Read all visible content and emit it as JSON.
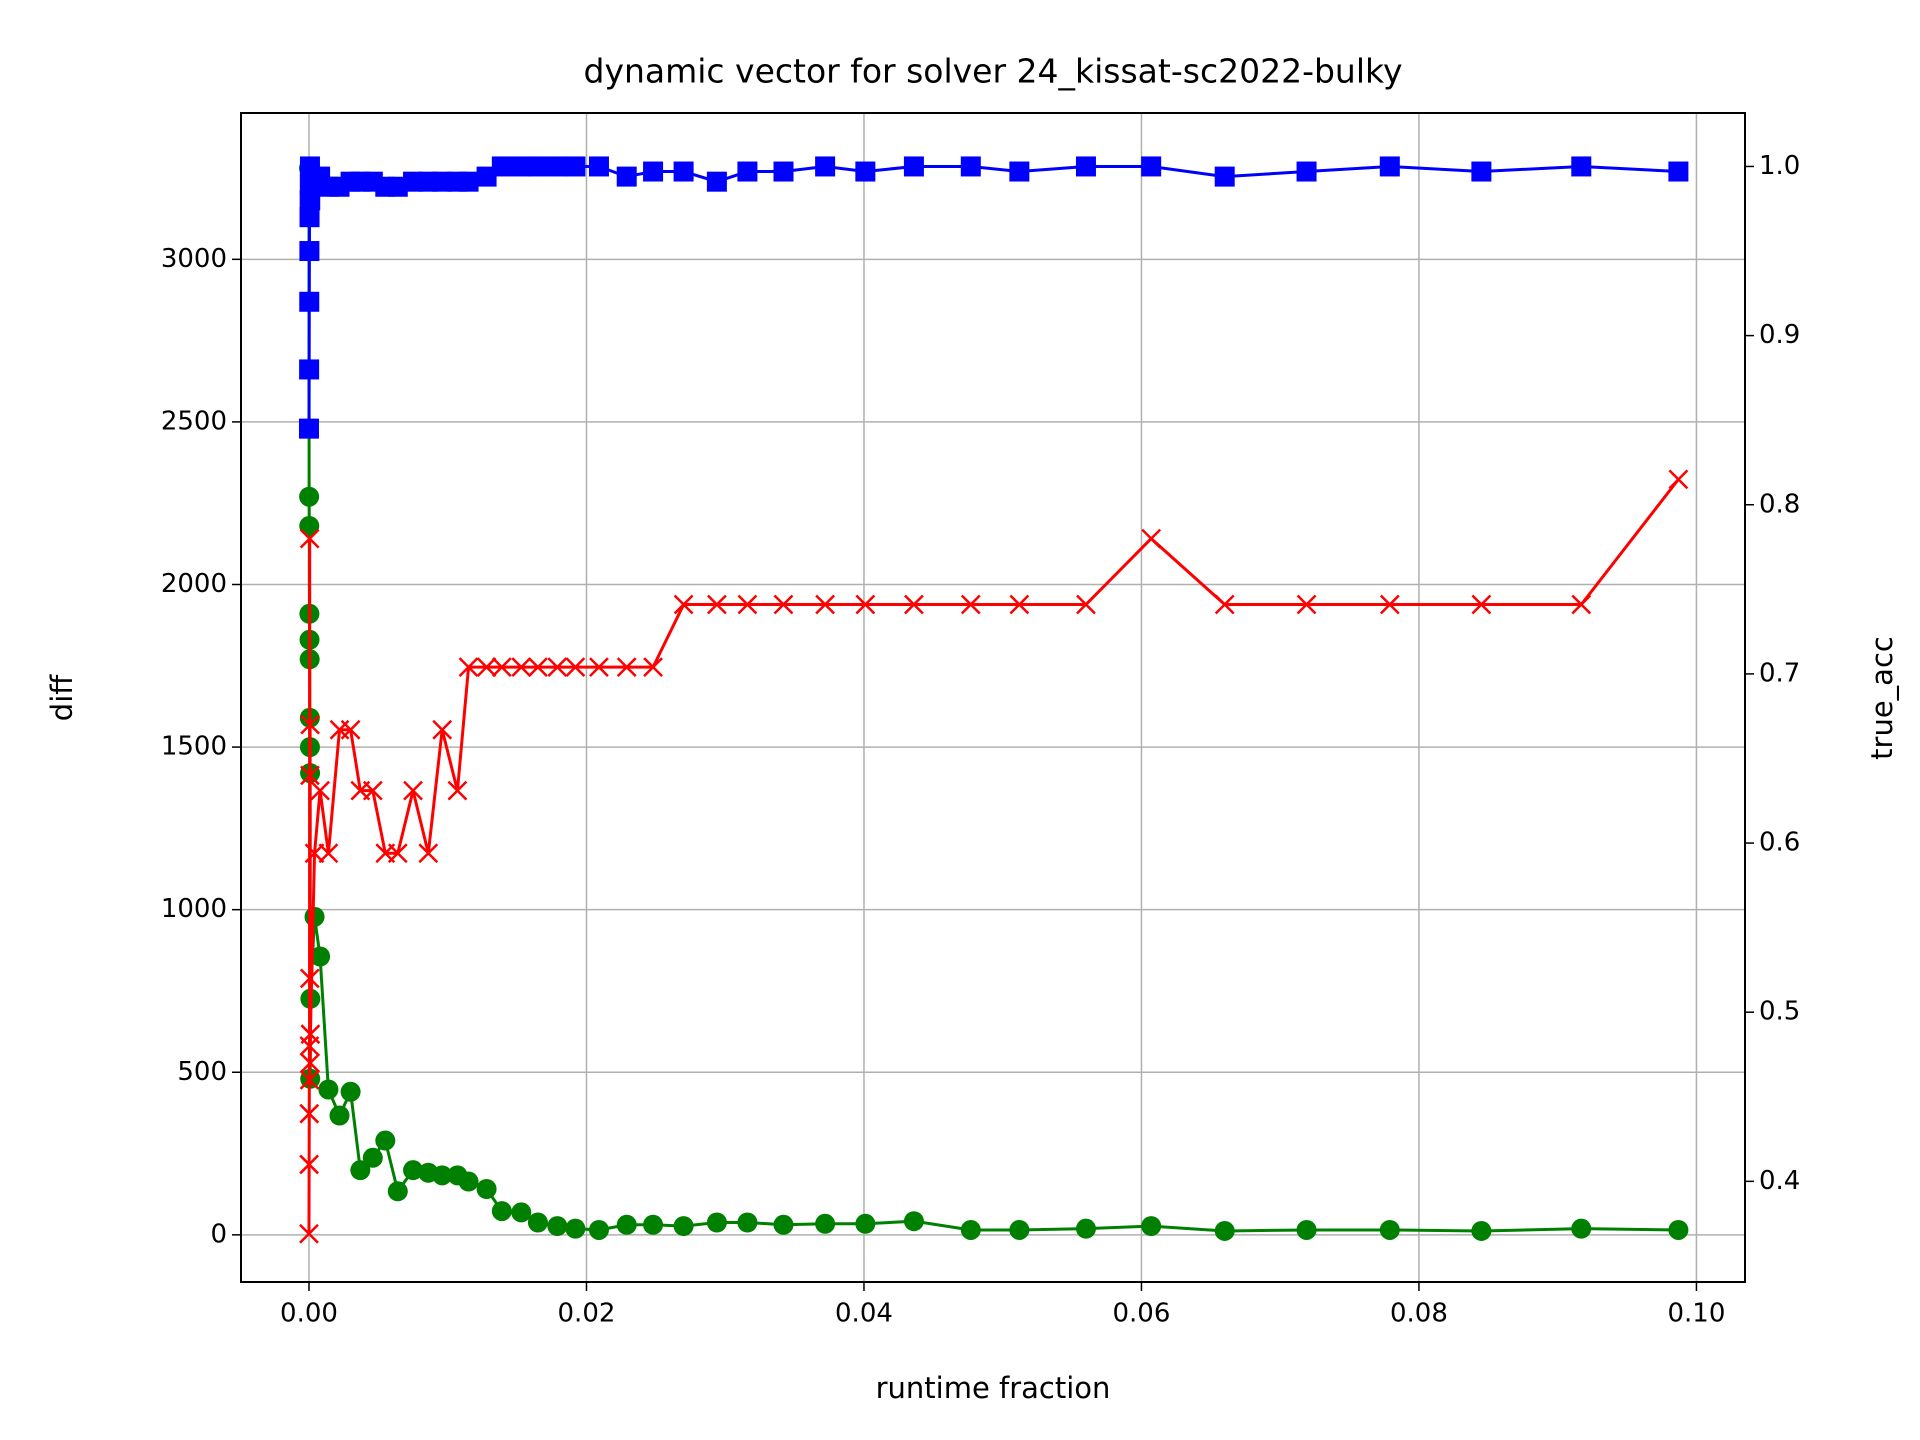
{
  "chart_data": {
    "type": "line",
    "title": "dynamic vector for solver 24_kissat-sc2022-bulky",
    "xlabel": "runtime fraction",
    "ylabel": "diff",
    "y2label": "true_acc",
    "ylabel_color": "green",
    "y2label_color": "red",
    "grid": true,
    "x": [
      0,
      1e-05,
      2e-05,
      3e-05,
      4e-05,
      5e-05,
      6e-05,
      7e-05,
      8e-05,
      9e-05,
      0.0001,
      0.0004,
      0.0008,
      0.0014,
      0.0022,
      0.003,
      0.0037,
      0.0046,
      0.0055,
      0.0064,
      0.0075,
      0.0086,
      0.0096,
      0.0107,
      0.0115,
      0.0128,
      0.0139,
      0.0153,
      0.0165,
      0.0179,
      0.0192,
      0.0209,
      0.0229,
      0.0248,
      0.027,
      0.0294,
      0.0316,
      0.0342,
      0.0372,
      0.0401,
      0.0436,
      0.0477,
      0.0512,
      0.056,
      0.0607,
      0.066,
      0.0719,
      0.0779,
      0.0845,
      0.0917,
      0.0987
    ],
    "series": [
      {
        "color": "green",
        "marker": "circle",
        "values": [
          3280,
          2270,
          2180,
          1910,
          1830,
          1770,
          1590,
          1500,
          1420,
          480,
          726,
          978,
          856,
          447,
          367,
          440,
          199,
          237,
          290,
          134,
          199,
          191,
          183,
          183,
          164,
          141,
          73,
          69,
          38,
          27,
          19,
          15,
          31,
          31,
          27,
          38,
          38,
          31,
          34,
          34,
          42,
          15,
          15,
          19,
          27,
          12,
          15,
          15,
          12,
          19,
          15
        ]
      },
      {
        "color": "red",
        "marker": "cross",
        "axis": "y2",
        "values": [
          0.369,
          0.41,
          0.44,
          0.48,
          0.46,
          0.78,
          0.52,
          0.64,
          0.67,
          0.47,
          0.487,
          0.594,
          0.631,
          0.594,
          0.667,
          0.667,
          0.631,
          0.631,
          0.594,
          0.594,
          0.631,
          0.594,
          0.667,
          0.631,
          0.704,
          0.704,
          0.704,
          0.704,
          0.704,
          0.704,
          0.704,
          0.704,
          0.704,
          0.704,
          0.741,
          0.741,
          0.741,
          0.741,
          0.741,
          0.741,
          0.741,
          0.741,
          0.741,
          0.741,
          0.78,
          0.741,
          0.741,
          0.741,
          0.741,
          0.741,
          0.815
        ]
      },
      {
        "color": "blue",
        "marker": "square",
        "axis": "y2",
        "values": [
          0.845,
          0.88,
          0.92,
          0.95,
          0.97,
          0.98,
          0.99,
          1.0,
          0.99,
          0.98,
          0.994,
          0.991,
          0.994,
          0.988,
          0.988,
          0.991,
          0.991,
          0.991,
          0.988,
          0.988,
          0.991,
          0.991,
          0.991,
          0.991,
          0.991,
          0.994,
          1.0,
          1.0,
          1.0,
          1.0,
          1.0,
          1.0,
          0.994,
          0.997,
          0.997,
          0.991,
          0.997,
          0.997,
          1.0,
          0.997,
          1.0,
          1.0,
          0.997,
          1.0,
          1.0,
          0.994,
          0.997,
          1.0,
          0.997,
          1.0,
          0.997
        ]
      }
    ],
    "xlim": [
      -0.0049,
      0.1035
    ],
    "xticks": [
      {
        "value": 0,
        "label": "0.00"
      },
      {
        "value": 0.02,
        "label": "0.02"
      },
      {
        "value": 0.04,
        "label": "0.04"
      },
      {
        "value": 0.06,
        "label": "0.06"
      },
      {
        "value": 0.08,
        "label": "0.08"
      },
      {
        "value": 0.1,
        "label": "0.10"
      }
    ],
    "ylim": [
      -145,
      3450
    ],
    "yticks": [
      0,
      500,
      1000,
      1500,
      2000,
      2500,
      3000
    ],
    "y2lim": [
      0.3405,
      1.0316
    ],
    "y2ticks": [
      0.4,
      0.5,
      0.6,
      0.7,
      0.8,
      0.9,
      {
        "value": 1,
        "label": "1.0"
      }
    ]
  }
}
